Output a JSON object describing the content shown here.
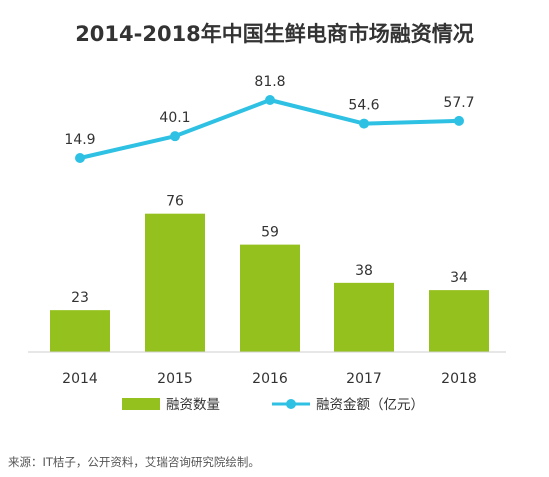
{
  "chart_data": {
    "type": "bar+line",
    "title": "2014-2018年中国生鲜电商市场融资情况",
    "categories": [
      "2014",
      "2015",
      "2016",
      "2017",
      "2018"
    ],
    "series": [
      {
        "name": "融资数量",
        "type": "bar",
        "values": [
          23,
          76,
          59,
          38,
          34
        ],
        "color": "#95c11f"
      },
      {
        "name": "融资金额（亿元）",
        "type": "line",
        "values": [
          14.9,
          40.1,
          81.8,
          54.6,
          57.7
        ],
        "color": "#2ec1e3"
      }
    ],
    "legend_position": "bottom",
    "grid": false
  },
  "source": "来源：IT桔子，公开资料，艾瑞咨询研究院绘制。"
}
